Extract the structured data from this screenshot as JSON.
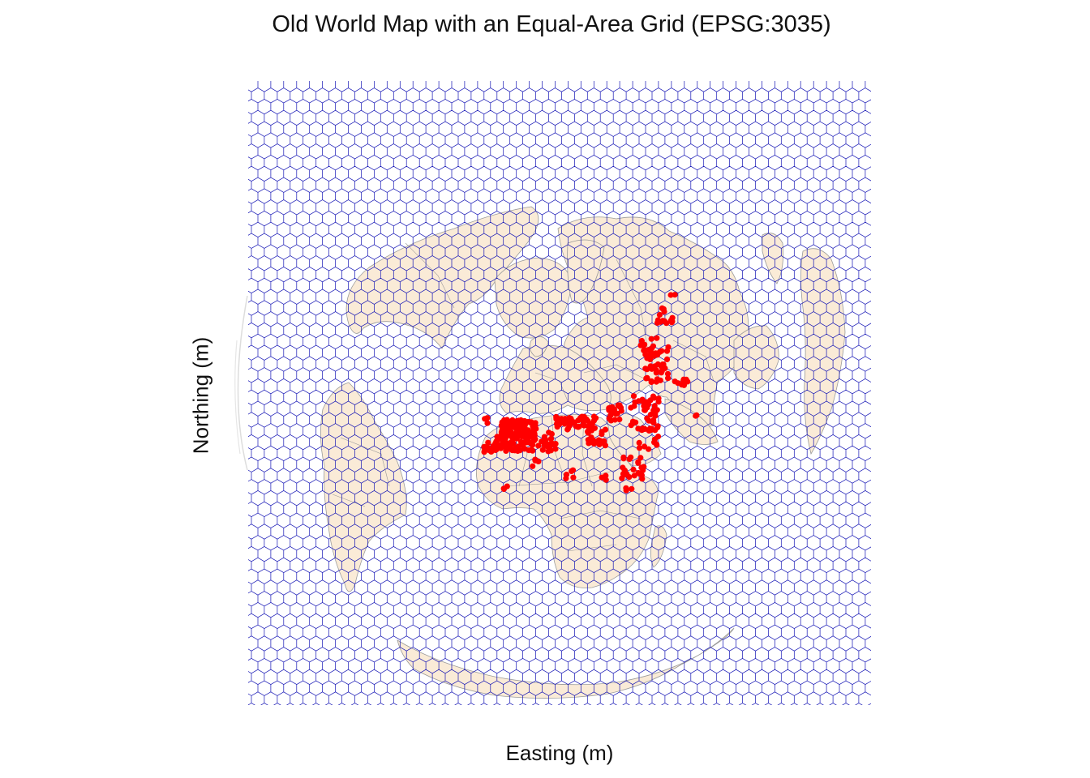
{
  "title": "Old World Map with an Equal-Area Grid (EPSG:3035)",
  "xlabel": "Easting (m)",
  "ylabel": "Northing (m)",
  "colors": {
    "land": "#faebd7",
    "border": "#9a9a9a",
    "grid": "#1515b5",
    "points": "#ff0000"
  },
  "map": {
    "projection": "EPSG:3035",
    "grid": "hexagonal",
    "layers": [
      "world-land",
      "country-borders",
      "hex-grid",
      "site-points"
    ]
  }
}
